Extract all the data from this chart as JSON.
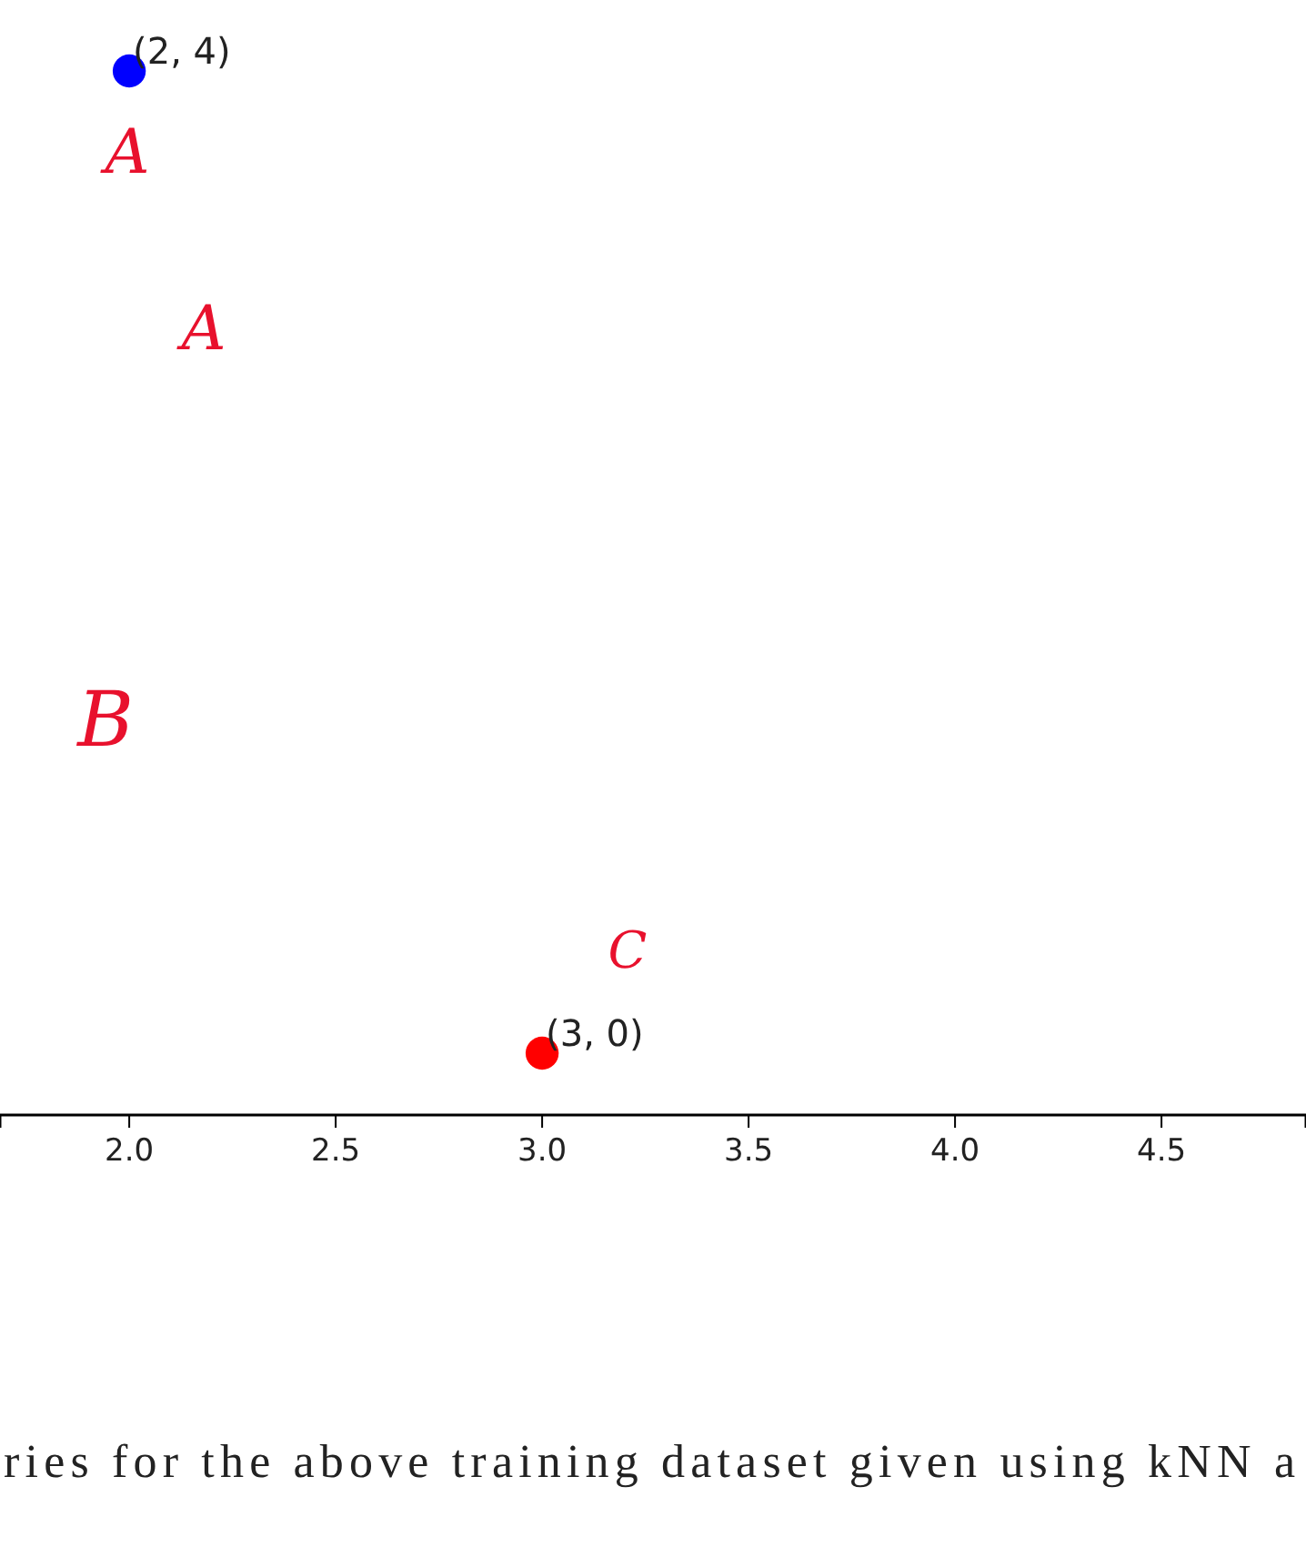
{
  "chart_data": {
    "type": "scatter",
    "x": [
      2,
      3
    ],
    "values": [
      4,
      0
    ],
    "colors": [
      "#0000ff",
      "#ff0000"
    ],
    "value_labels": [
      "(2, 4)",
      "(3, 0)"
    ],
    "xlim": [
      1.687,
      4.85
    ],
    "xticks": [
      {
        "value": 2,
        "label": "2.0"
      },
      {
        "value": 2.5,
        "label": "2.5"
      },
      {
        "value": 3,
        "label": "3.0"
      },
      {
        "value": 3.5,
        "label": "3.5"
      },
      {
        "value": 4,
        "label": "4.0"
      },
      {
        "value": 4.5,
        "label": "4.5"
      }
    ],
    "tick_labels": "x",
    "marker": "circle",
    "grid": false,
    "annotations": [
      "A",
      "A",
      "B",
      "C",
      "ries for the above training dataset given using kNN a"
    ]
  }
}
